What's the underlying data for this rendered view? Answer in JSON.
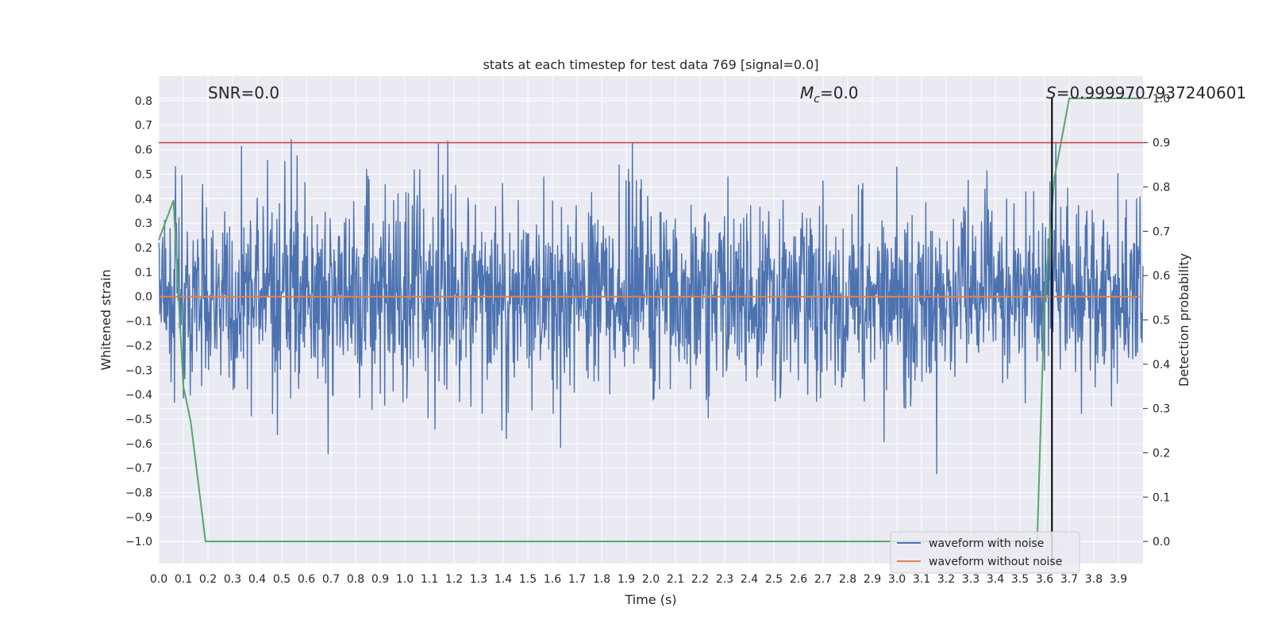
{
  "chart_data": {
    "type": "line",
    "title": "stats at each timestep for test data 769 [signal=0.0]",
    "xlabel": "Time (s)",
    "ylabel": "Whitened strain",
    "y2label": "Detection probability",
    "xlim": [
      0.0,
      4.0
    ],
    "ylim": [
      -1.09,
      0.9
    ],
    "y2lim": [
      -0.05,
      1.05
    ],
    "x_ticks": [
      "0.0",
      "0.1",
      "0.2",
      "0.3",
      "0.4",
      "0.5",
      "0.6",
      "0.7",
      "0.8",
      "0.9",
      "1.0",
      "1.1",
      "1.2",
      "1.3",
      "1.4",
      "1.5",
      "1.6",
      "1.7",
      "1.8",
      "1.9",
      "2.0",
      "2.1",
      "2.2",
      "2.3",
      "2.4",
      "2.5",
      "2.6",
      "2.7",
      "2.8",
      "2.9",
      "3.0",
      "3.1",
      "3.2",
      "3.3",
      "3.4",
      "3.5",
      "3.6",
      "3.7",
      "3.8",
      "3.9"
    ],
    "y_ticks": [
      "0.8",
      "0.7",
      "0.6",
      "0.5",
      "0.4",
      "0.3",
      "0.2",
      "0.1",
      "0.0",
      "−0.1",
      "−0.2",
      "−0.3",
      "−0.4",
      "−0.5",
      "−0.6",
      "−0.7",
      "−0.8",
      "−0.9",
      "−1.0"
    ],
    "y2_ticks": [
      "1.0",
      "0.9",
      "0.8",
      "0.7",
      "0.6",
      "0.5",
      "0.4",
      "0.3",
      "0.2",
      "0.1",
      "0.0"
    ],
    "annotations": {
      "snr": "SNR=0.0",
      "mc_symbol": "M",
      "mc_sub": "c",
      "mc_value": "=0.0",
      "s_symbol": "S",
      "s_value": "=0.9999707937240601"
    },
    "threshold_prob": 0.9,
    "detection_time": 3.63,
    "series": [
      {
        "name": "waveform with noise",
        "color": "#4c72b0",
        "kind": "noise",
        "sigma": 0.2,
        "seed": 769,
        "n_samples": 2000
      },
      {
        "name": "waveform without noise",
        "color": "#dd8452",
        "kind": "constant",
        "value": 0.0
      },
      {
        "name": "detection probability",
        "color": "#55a868",
        "axis": "right",
        "x": [
          0.0,
          0.06,
          0.1,
          0.13,
          0.19,
          0.25,
          0.5,
          1.0,
          1.5,
          1.8,
          2.0,
          2.5,
          3.0,
          3.5,
          3.57,
          3.6,
          3.64,
          3.7,
          3.8,
          3.99
        ],
        "values": [
          0.68,
          0.77,
          0.35,
          0.27,
          0.0,
          0.0,
          0.0,
          0.0,
          0.0,
          0.0,
          0.0,
          0.0,
          0.0,
          0.0,
          0.0,
          0.55,
          0.82,
          1.0,
          1.0,
          1.0
        ]
      }
    ],
    "colors": {
      "threshold": "#c44e52",
      "detection_line": "#000000",
      "background": "#eaeaf2",
      "grid": "#ffffff"
    }
  }
}
